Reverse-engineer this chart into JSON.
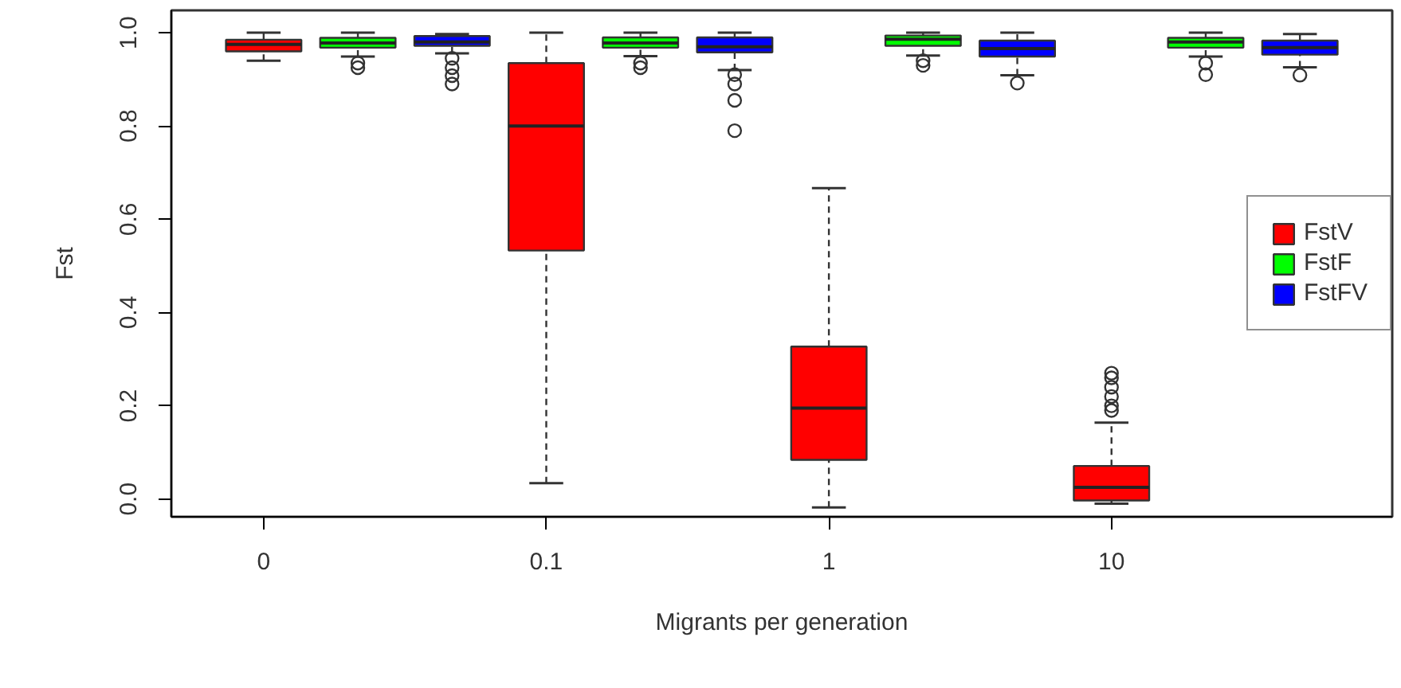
{
  "chart_data": {
    "type": "box",
    "xlabel": "Migrants per generation",
    "ylabel": "Fst",
    "categories": [
      "0",
      null,
      null,
      "0.1",
      null,
      null,
      "1",
      null,
      null,
      "10",
      null,
      null
    ],
    "ylim": [
      -0.038,
      1.048
    ],
    "yticks": [
      {
        "value": 0,
        "label": "0.0"
      },
      {
        "value": 0.2,
        "label": "0.2"
      },
      {
        "value": 0.4,
        "label": "0.4"
      },
      {
        "value": 0.6,
        "label": "0.6"
      },
      {
        "value": 0.8,
        "label": "0.8"
      },
      {
        "value": 1,
        "label": "1.0"
      }
    ],
    "legend": "right",
    "grid": false,
    "series": [
      {
        "name": "FstV",
        "color": "#ff0000",
        "boxes": [
          {
            "low": 0.94,
            "q1": 0.96,
            "median": 0.975,
            "q3": 0.985,
            "high": 1.0
          },
          null,
          null,
          {
            "low": 0.034,
            "q1": 0.533,
            "median": 0.8,
            "q3": 0.935,
            "high": 1.0
          },
          null,
          null,
          {
            "low": -0.018,
            "q1": 0.084,
            "median": 0.195,
            "q3": 0.327,
            "high": 0.667
          },
          null,
          null,
          {
            "low": -0.01,
            "q1": -0.003,
            "median": 0.025,
            "q3": 0.071,
            "high": 0.164,
            "outliers": [
              0.19,
              0.2,
              0.22,
              0.24,
              0.26,
              0.27
            ]
          },
          null,
          null
        ]
      },
      {
        "name": "FstF",
        "color": "#00ff00",
        "boxes": [
          null,
          {
            "low": 0.949,
            "q1": 0.968,
            "median": 0.978,
            "q3": 0.989,
            "high": 1.0,
            "outliers": [
              0.935,
              0.925
            ]
          },
          null,
          null,
          {
            "low": 0.95,
            "q1": 0.968,
            "median": 0.978,
            "q3": 0.99,
            "high": 1.0,
            "outliers": [
              0.935,
              0.925
            ]
          },
          null,
          null,
          {
            "low": 0.951,
            "q1": 0.972,
            "median": 0.986,
            "q3": 0.994,
            "high": 1.0,
            "outliers": [
              0.94,
              0.93
            ]
          },
          null,
          null,
          {
            "low": 0.949,
            "q1": 0.968,
            "median": 0.98,
            "q3": 0.989,
            "high": 1.0,
            "outliers": [
              0.935,
              0.91
            ]
          },
          null
        ]
      },
      {
        "name": "FstFV",
        "color": "#0000ff",
        "boxes": [
          null,
          null,
          {
            "low": 0.956,
            "q1": 0.972,
            "median": 0.98,
            "q3": 0.993,
            "high": 0.997,
            "outliers": [
              0.945,
              0.925,
              0.908,
              0.89
            ]
          },
          null,
          null,
          {
            "low": 0.92,
            "q1": 0.958,
            "median": 0.97,
            "q3": 0.99,
            "high": 1.0,
            "outliers": [
              0.91,
              0.89,
              0.855,
              0.79
            ]
          },
          null,
          null,
          {
            "low": 0.909,
            "q1": 0.949,
            "median": 0.966,
            "q3": 0.983,
            "high": 1.0,
            "outliers": [
              0.892
            ]
          },
          null,
          null,
          {
            "low": 0.926,
            "q1": 0.953,
            "median": 0.968,
            "q3": 0.983,
            "high": 0.997,
            "outliers": [
              0.909
            ]
          }
        ]
      }
    ]
  }
}
